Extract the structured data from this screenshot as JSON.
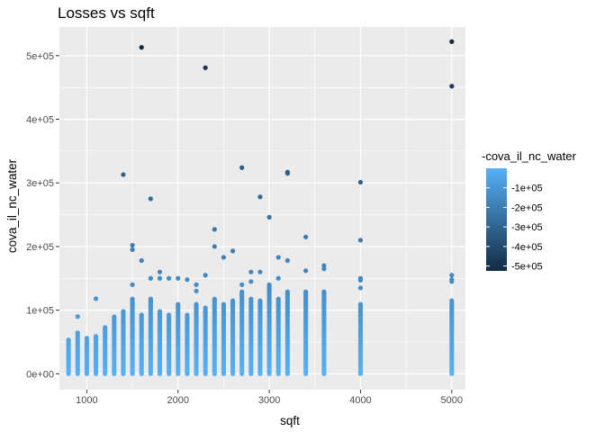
{
  "chart_data": {
    "type": "scatter",
    "title": "Losses vs sqft",
    "xlabel": "sqft",
    "ylabel": "cova_il_nc_water",
    "xlim": [
      700,
      5150
    ],
    "ylim": [
      -25000,
      545000
    ],
    "x_ticks": [
      1000,
      2000,
      3000,
      4000,
      5000
    ],
    "x_tick_labels": [
      "1000",
      "2000",
      "3000",
      "4000",
      "5000"
    ],
    "y_ticks": [
      0,
      100000,
      200000,
      300000,
      400000,
      500000
    ],
    "y_tick_labels": [
      "0e+00",
      "1e+05",
      "2e+05",
      "3e+05",
      "4e+05",
      "5e+05"
    ],
    "grid": true,
    "legend": {
      "title": "-cova_il_nc_water",
      "placement": "right",
      "labels": [
        "-1e+05",
        "-2e+05",
        "-3e+05",
        "-4e+05",
        "-5e+05"
      ],
      "values": [
        -100000,
        -200000,
        -300000,
        -400000,
        -500000
      ],
      "range": [
        -525000,
        0
      ],
      "low_color": "#132B43",
      "high_color": "#56B1F7"
    },
    "columns": [
      {
        "x": 800,
        "max": 55000
      },
      {
        "x": 900,
        "max": 65000
      },
      {
        "x": 1000,
        "max": 58000
      },
      {
        "x": 1100,
        "max": 60000
      },
      {
        "x": 1200,
        "max": 75000
      },
      {
        "x": 1300,
        "max": 92000
      },
      {
        "x": 1400,
        "max": 100000
      },
      {
        "x": 1500,
        "max": 120000
      },
      {
        "x": 1600,
        "max": 95000
      },
      {
        "x": 1700,
        "max": 120000
      },
      {
        "x": 1800,
        "max": 100000
      },
      {
        "x": 1900,
        "max": 95000
      },
      {
        "x": 2000,
        "max": 110000
      },
      {
        "x": 2100,
        "max": 95000
      },
      {
        "x": 2200,
        "max": 110000
      },
      {
        "x": 2300,
        "max": 105000
      },
      {
        "x": 2400,
        "max": 120000
      },
      {
        "x": 2500,
        "max": 110000
      },
      {
        "x": 2600,
        "max": 115000
      },
      {
        "x": 2700,
        "max": 130000
      },
      {
        "x": 2800,
        "max": 120000
      },
      {
        "x": 2900,
        "max": 115000
      },
      {
        "x": 3000,
        "max": 140000
      },
      {
        "x": 3100,
        "max": 120000
      },
      {
        "x": 3200,
        "max": 130000
      },
      {
        "x": 3400,
        "max": 130000
      },
      {
        "x": 3600,
        "max": 130000
      },
      {
        "x": 4000,
        "max": 110000
      },
      {
        "x": 5000,
        "max": 115000
      }
    ],
    "points": [
      {
        "x": 900,
        "y": 90000
      },
      {
        "x": 1100,
        "y": 118000
      },
      {
        "x": 1400,
        "y": 313000
      },
      {
        "x": 1500,
        "y": 202000
      },
      {
        "x": 1500,
        "y": 195000
      },
      {
        "x": 1500,
        "y": 140000
      },
      {
        "x": 1600,
        "y": 513000
      },
      {
        "x": 1600,
        "y": 178000
      },
      {
        "x": 1700,
        "y": 275000
      },
      {
        "x": 1700,
        "y": 150000
      },
      {
        "x": 1800,
        "y": 160000
      },
      {
        "x": 1800,
        "y": 150000
      },
      {
        "x": 1900,
        "y": 150000
      },
      {
        "x": 2000,
        "y": 150000
      },
      {
        "x": 2100,
        "y": 148000
      },
      {
        "x": 2200,
        "y": 140000
      },
      {
        "x": 2200,
        "y": 130000
      },
      {
        "x": 2300,
        "y": 481000
      },
      {
        "x": 2300,
        "y": 155000
      },
      {
        "x": 2400,
        "y": 227000
      },
      {
        "x": 2400,
        "y": 200000
      },
      {
        "x": 2500,
        "y": 183000
      },
      {
        "x": 2600,
        "y": 193000
      },
      {
        "x": 2700,
        "y": 324000
      },
      {
        "x": 2700,
        "y": 140000
      },
      {
        "x": 2800,
        "y": 160000
      },
      {
        "x": 2800,
        "y": 145000
      },
      {
        "x": 2900,
        "y": 278000
      },
      {
        "x": 2900,
        "y": 160000
      },
      {
        "x": 3000,
        "y": 246000
      },
      {
        "x": 3100,
        "y": 183000
      },
      {
        "x": 3100,
        "y": 150000
      },
      {
        "x": 3200,
        "y": 317000
      },
      {
        "x": 3200,
        "y": 315000
      },
      {
        "x": 3200,
        "y": 178000
      },
      {
        "x": 3400,
        "y": 215000
      },
      {
        "x": 3400,
        "y": 162000
      },
      {
        "x": 3600,
        "y": 170000
      },
      {
        "x": 3600,
        "y": 165000
      },
      {
        "x": 4000,
        "y": 301000
      },
      {
        "x": 4000,
        "y": 210000
      },
      {
        "x": 4000,
        "y": 150000
      },
      {
        "x": 4000,
        "y": 147000
      },
      {
        "x": 4000,
        "y": 135000
      },
      {
        "x": 5000,
        "y": 522000
      },
      {
        "x": 5000,
        "y": 452000
      },
      {
        "x": 5000,
        "y": 155000
      },
      {
        "x": 5000,
        "y": 148000
      },
      {
        "x": 5000,
        "y": 145000
      }
    ]
  }
}
